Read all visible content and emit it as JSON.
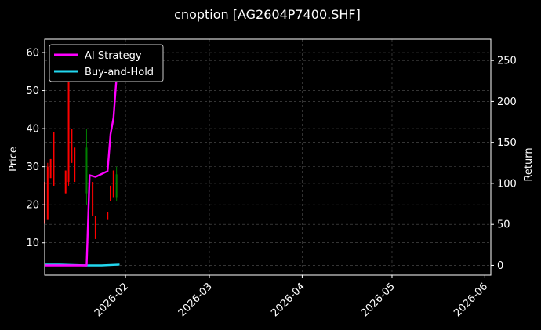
{
  "chart_data": {
    "type": "line",
    "title": "cnoption [AG2604P7400.SHF]",
    "ylabel_left": "Price",
    "ylabel_right": "Return",
    "xlim": [
      "2026-01-05",
      "2026-06-03"
    ],
    "ylim_left": [
      1.5,
      63.5
    ],
    "ylim_right": [
      -12,
      276
    ],
    "x_ticks": [
      "2026-02",
      "2026-03",
      "2026-04",
      "2026-05",
      "2026-06"
    ],
    "y_ticks_left": [
      10,
      20,
      30,
      40,
      50,
      60
    ],
    "y_ticks_right": [
      0,
      50,
      100,
      150,
      200,
      250
    ],
    "grid": true,
    "legend_position": "top-left",
    "colors": {
      "background": "#000000",
      "ai_strategy": "#ff00ff",
      "buy_and_hold": "#22d8f0",
      "up": "#008000",
      "down": "#ff0000",
      "grid": "#555555"
    },
    "candles": [
      {
        "date": "2026-01-05",
        "open": 26,
        "high": 26,
        "low": 15,
        "close": 15
      },
      {
        "date": "2026-01-06",
        "open": 30,
        "high": 31,
        "low": 16,
        "close": 16
      },
      {
        "date": "2026-01-07",
        "open": 32,
        "high": 32,
        "low": 27,
        "close": 27
      },
      {
        "date": "2026-01-08",
        "open": 39,
        "high": 39,
        "low": 25,
        "close": 25
      },
      {
        "date": "2026-01-12",
        "open": 29,
        "high": 29,
        "low": 23,
        "close": 23
      },
      {
        "date": "2026-01-13",
        "open": 55,
        "high": 55,
        "low": 25,
        "close": 26
      },
      {
        "date": "2026-01-14",
        "open": 40,
        "high": 40,
        "low": 31,
        "close": 31
      },
      {
        "date": "2026-01-15",
        "open": 35,
        "high": 35,
        "low": 26,
        "close": 26
      },
      {
        "date": "2026-01-19",
        "open": 23,
        "high": 40,
        "low": 20,
        "close": 35
      },
      {
        "date": "2026-01-21",
        "open": 26,
        "high": 26,
        "low": 17,
        "close": 17
      },
      {
        "date": "2026-01-22",
        "open": 17,
        "high": 17,
        "low": 11,
        "close": 11
      },
      {
        "date": "2026-01-26",
        "open": 18,
        "high": 18,
        "low": 16,
        "close": 16
      },
      {
        "date": "2026-01-27",
        "open": 25,
        "high": 25,
        "low": 21,
        "close": 21
      },
      {
        "date": "2026-01-28",
        "open": 29,
        "high": 29,
        "low": 22,
        "close": 22
      },
      {
        "date": "2026-01-29",
        "open": 22,
        "high": 30,
        "low": 21,
        "close": 28
      }
    ],
    "series": [
      {
        "name": "AI Strategy",
        "x": [
          "2026-01-05",
          "2026-01-12",
          "2026-01-19",
          "2026-01-20",
          "2026-01-22",
          "2026-01-26",
          "2026-01-27",
          "2026-01-28",
          "2026-01-29",
          "2026-01-30"
        ],
        "values": [
          0,
          0,
          0,
          110,
          108,
          115,
          160,
          180,
          230,
          265
        ]
      },
      {
        "name": "Buy-and-Hold",
        "x": [
          "2026-01-05",
          "2026-01-10",
          "2026-01-19",
          "2026-01-24",
          "2026-01-30"
        ],
        "values": [
          1,
          1,
          0,
          0,
          1
        ]
      }
    ]
  }
}
